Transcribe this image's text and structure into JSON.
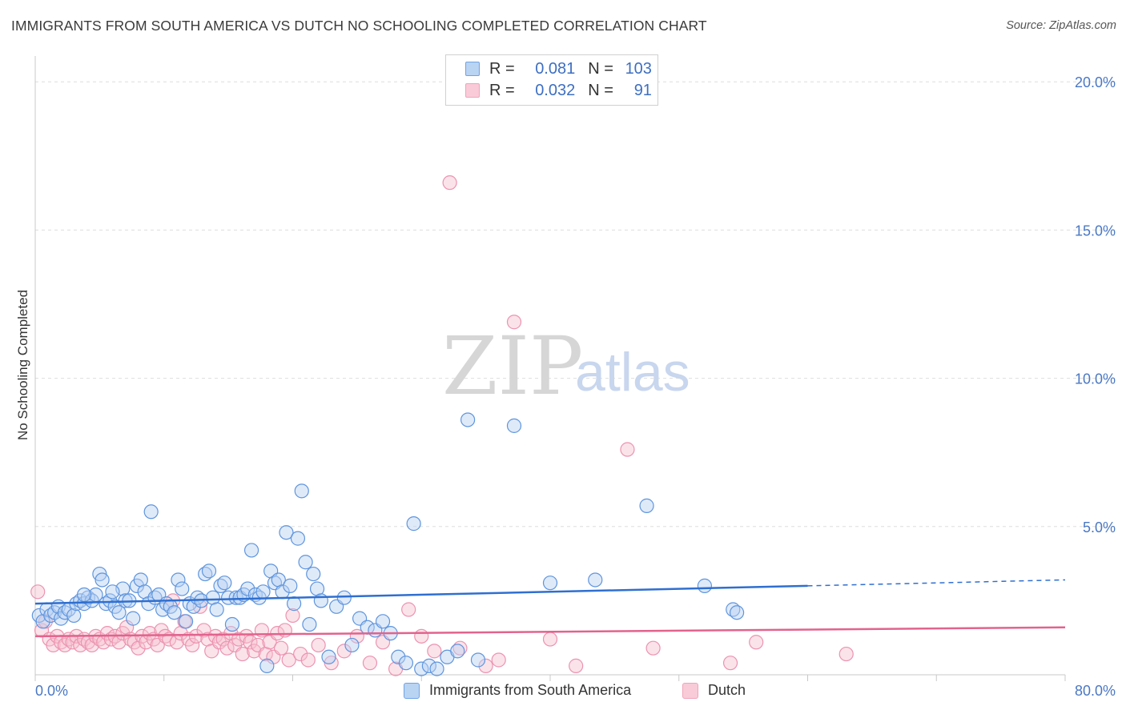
{
  "title": "IMMIGRANTS FROM SOUTH AMERICA VS DUTCH NO SCHOOLING COMPLETED CORRELATION CHART",
  "source": "Source: ZipAtlas.com",
  "watermark": {
    "zip": "ZIP",
    "atlas": "atlas"
  },
  "colors": {
    "blue": "#6fa3e6",
    "blue_line": "#2f6fd0",
    "pink": "#f0a3bb",
    "pink_line": "#e2638d",
    "tick": "#4a78c4"
  },
  "legend": {
    "rows": [
      {
        "r_label": "R =",
        "r_value": "0.081",
        "n_label": "N =",
        "n_value": "103"
      },
      {
        "r_label": "R =",
        "r_value": "0.032",
        "n_label": "N =",
        "n_value": "91"
      }
    ]
  },
  "chart_data": {
    "type": "scatter",
    "title": "IMMIGRANTS FROM SOUTH AMERICA VS DUTCH NO SCHOOLING COMPLETED CORRELATION CHART",
    "xlabel": "",
    "ylabel": "No Schooling Completed",
    "xlim": [
      0,
      80
    ],
    "ylim": [
      0,
      20.6
    ],
    "x_tick_labels": [
      "0.0%",
      "80.0%"
    ],
    "y_ticks": [
      5,
      10,
      15,
      20
    ],
    "y_tick_labels": [
      "5.0%",
      "10.0%",
      "15.0%",
      "20.0%"
    ],
    "grid": true,
    "legend_position": "bottom-center",
    "series": [
      {
        "name": "Immigrants from South America",
        "color": "#6fa3e6",
        "R": 0.081,
        "N": 103,
        "trend": {
          "x0": 0,
          "y0": 2.4,
          "x1": 60,
          "y1": 3.0,
          "dash_to_x": 80,
          "dash_to_y": 3.2
        },
        "points": [
          [
            0.3,
            2.0
          ],
          [
            0.6,
            1.8
          ],
          [
            0.9,
            2.2
          ],
          [
            1.2,
            2.0
          ],
          [
            1.5,
            2.1
          ],
          [
            1.8,
            2.3
          ],
          [
            2.0,
            1.9
          ],
          [
            2.3,
            2.1
          ],
          [
            2.6,
            2.2
          ],
          [
            3.0,
            2.0
          ],
          [
            3.2,
            2.4
          ],
          [
            3.5,
            2.5
          ],
          [
            3.8,
            2.4
          ],
          [
            4.1,
            2.6
          ],
          [
            4.4,
            2.5
          ],
          [
            4.7,
            2.7
          ],
          [
            5.0,
            3.4
          ],
          [
            5.2,
            3.2
          ],
          [
            5.5,
            2.4
          ],
          [
            5.8,
            2.5
          ],
          [
            6.2,
            2.3
          ],
          [
            6.5,
            2.1
          ],
          [
            6.8,
            2.9
          ],
          [
            7.0,
            2.5
          ],
          [
            7.3,
            2.5
          ],
          [
            7.6,
            1.9
          ],
          [
            7.9,
            3.0
          ],
          [
            8.2,
            3.2
          ],
          [
            8.5,
            2.8
          ],
          [
            8.8,
            2.4
          ],
          [
            9.0,
            5.5
          ],
          [
            9.3,
            2.6
          ],
          [
            9.6,
            2.7
          ],
          [
            9.9,
            2.2
          ],
          [
            10.2,
            2.4
          ],
          [
            10.5,
            2.3
          ],
          [
            10.8,
            2.1
          ],
          [
            11.1,
            3.2
          ],
          [
            11.4,
            2.9
          ],
          [
            11.7,
            1.8
          ],
          [
            12.0,
            2.4
          ],
          [
            12.3,
            2.3
          ],
          [
            12.6,
            2.6
          ],
          [
            12.9,
            2.5
          ],
          [
            13.2,
            3.4
          ],
          [
            13.5,
            3.5
          ],
          [
            13.8,
            2.6
          ],
          [
            14.1,
            2.2
          ],
          [
            14.4,
            3.0
          ],
          [
            14.7,
            3.1
          ],
          [
            15.0,
            2.6
          ],
          [
            15.3,
            1.7
          ],
          [
            15.6,
            2.6
          ],
          [
            15.9,
            2.6
          ],
          [
            16.2,
            2.7
          ],
          [
            16.5,
            2.9
          ],
          [
            16.8,
            4.2
          ],
          [
            17.1,
            2.7
          ],
          [
            17.4,
            2.6
          ],
          [
            17.7,
            2.8
          ],
          [
            18.0,
            0.3
          ],
          [
            18.3,
            3.5
          ],
          [
            18.6,
            3.1
          ],
          [
            18.9,
            3.2
          ],
          [
            19.2,
            2.8
          ],
          [
            19.5,
            4.8
          ],
          [
            19.8,
            3.0
          ],
          [
            20.1,
            2.4
          ],
          [
            20.4,
            4.6
          ],
          [
            20.7,
            6.2
          ],
          [
            21.0,
            3.8
          ],
          [
            21.3,
            1.7
          ],
          [
            21.6,
            3.4
          ],
          [
            21.9,
            2.9
          ],
          [
            22.2,
            2.5
          ],
          [
            22.8,
            0.6
          ],
          [
            23.4,
            2.3
          ],
          [
            24.0,
            2.6
          ],
          [
            24.6,
            1.0
          ],
          [
            25.2,
            1.9
          ],
          [
            25.8,
            1.6
          ],
          [
            26.4,
            1.5
          ],
          [
            27.0,
            1.8
          ],
          [
            27.6,
            1.4
          ],
          [
            28.2,
            0.6
          ],
          [
            28.8,
            0.4
          ],
          [
            29.4,
            5.1
          ],
          [
            30.0,
            0.2
          ],
          [
            30.6,
            0.3
          ],
          [
            31.2,
            0.2
          ],
          [
            32.0,
            0.6
          ],
          [
            32.8,
            0.8
          ],
          [
            33.6,
            8.6
          ],
          [
            34.4,
            0.5
          ],
          [
            37.2,
            8.4
          ],
          [
            40.0,
            3.1
          ],
          [
            43.5,
            3.2
          ],
          [
            47.5,
            5.7
          ],
          [
            54.2,
            2.2
          ],
          [
            54.5,
            2.1
          ],
          [
            52.0,
            3.0
          ],
          [
            3.8,
            2.7
          ],
          [
            6.0,
            2.8
          ]
        ]
      },
      {
        "name": "Dutch",
        "color": "#f0a3bb",
        "R": 0.032,
        "N": 91,
        "trend": {
          "x0": 0,
          "y0": 1.3,
          "x1": 80,
          "y1": 1.6
        },
        "points": [
          [
            0.2,
            2.8
          ],
          [
            0.5,
            1.5
          ],
          [
            0.8,
            1.8
          ],
          [
            1.1,
            1.2
          ],
          [
            1.4,
            1.0
          ],
          [
            1.7,
            1.3
          ],
          [
            2.0,
            1.1
          ],
          [
            2.3,
            1.0
          ],
          [
            2.6,
            1.2
          ],
          [
            2.9,
            1.1
          ],
          [
            3.2,
            1.3
          ],
          [
            3.5,
            1.0
          ],
          [
            3.8,
            1.2
          ],
          [
            4.1,
            1.1
          ],
          [
            4.4,
            1.0
          ],
          [
            4.7,
            1.3
          ],
          [
            5.0,
            1.2
          ],
          [
            5.3,
            1.1
          ],
          [
            5.6,
            1.4
          ],
          [
            5.9,
            1.2
          ],
          [
            6.2,
            1.3
          ],
          [
            6.5,
            1.1
          ],
          [
            6.8,
            1.4
          ],
          [
            7.1,
            1.6
          ],
          [
            7.4,
            1.2
          ],
          [
            7.7,
            1.1
          ],
          [
            8.0,
            0.9
          ],
          [
            8.3,
            1.3
          ],
          [
            8.6,
            1.1
          ],
          [
            8.9,
            1.4
          ],
          [
            9.2,
            1.2
          ],
          [
            9.5,
            1.0
          ],
          [
            9.8,
            1.5
          ],
          [
            10.1,
            1.3
          ],
          [
            10.4,
            1.2
          ],
          [
            10.7,
            2.5
          ],
          [
            11.0,
            1.1
          ],
          [
            11.3,
            1.4
          ],
          [
            11.6,
            1.8
          ],
          [
            11.9,
            1.2
          ],
          [
            12.2,
            1.0
          ],
          [
            12.5,
            1.3
          ],
          [
            12.8,
            2.3
          ],
          [
            13.1,
            1.5
          ],
          [
            13.4,
            1.2
          ],
          [
            13.7,
            0.8
          ],
          [
            14.0,
            1.3
          ],
          [
            14.3,
            1.1
          ],
          [
            14.6,
            1.2
          ],
          [
            14.9,
            0.9
          ],
          [
            15.2,
            1.4
          ],
          [
            15.5,
            1.0
          ],
          [
            15.8,
            1.2
          ],
          [
            16.1,
            0.7
          ],
          [
            16.4,
            1.3
          ],
          [
            16.7,
            1.1
          ],
          [
            17.0,
            0.8
          ],
          [
            17.3,
            1.0
          ],
          [
            17.6,
            1.5
          ],
          [
            17.9,
            0.7
          ],
          [
            18.2,
            1.1
          ],
          [
            18.5,
            0.6
          ],
          [
            18.8,
            1.4
          ],
          [
            19.1,
            0.9
          ],
          [
            19.4,
            1.5
          ],
          [
            19.7,
            0.5
          ],
          [
            20.0,
            2.0
          ],
          [
            20.6,
            0.7
          ],
          [
            21.2,
            0.5
          ],
          [
            22.0,
            1.0
          ],
          [
            23.0,
            0.4
          ],
          [
            24.0,
            0.8
          ],
          [
            25.0,
            1.3
          ],
          [
            26.0,
            0.4
          ],
          [
            27.0,
            1.1
          ],
          [
            28.0,
            0.2
          ],
          [
            29.0,
            2.2
          ],
          [
            30.0,
            1.3
          ],
          [
            31.0,
            0.8
          ],
          [
            32.2,
            16.6
          ],
          [
            33.0,
            0.9
          ],
          [
            35.0,
            0.3
          ],
          [
            36.0,
            0.5
          ],
          [
            37.2,
            11.9
          ],
          [
            40.0,
            1.2
          ],
          [
            42.0,
            0.3
          ],
          [
            46.0,
            7.6
          ],
          [
            48.0,
            0.9
          ],
          [
            54.0,
            0.4
          ],
          [
            56.0,
            1.1
          ],
          [
            63.0,
            0.7
          ]
        ]
      }
    ]
  },
  "bottom_legend": [
    "Immigrants from South America",
    "Dutch"
  ]
}
